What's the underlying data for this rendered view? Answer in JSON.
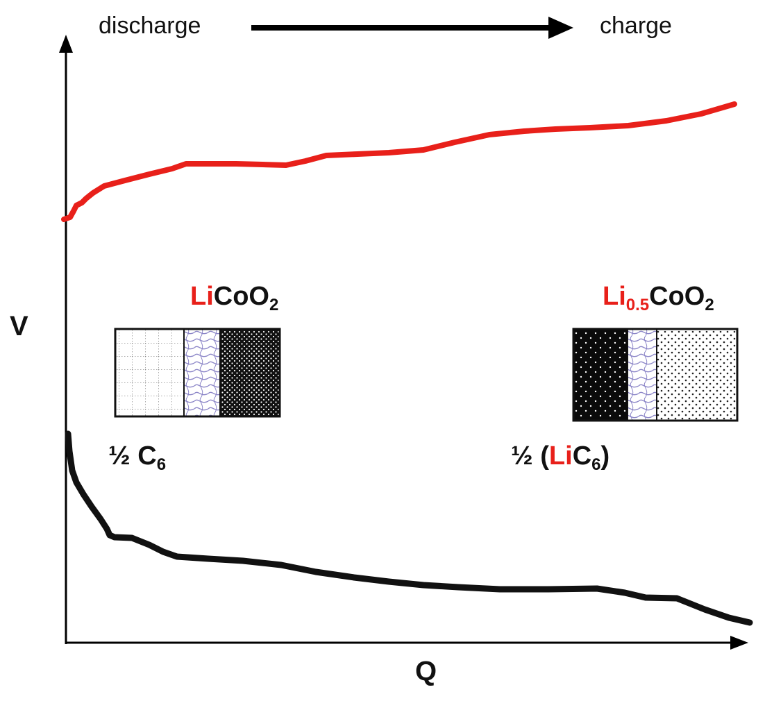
{
  "direction": {
    "left_label": "discharge",
    "right_label": "charge"
  },
  "axes": {
    "y_label": "V",
    "x_label": "Q"
  },
  "states": {
    "discharged": {
      "cathode_prefix": "Li",
      "cathode_rest": "CoO",
      "cathode_sub": "2",
      "anode_fraction": "½",
      "anode_main": "C",
      "anode_sub": "6"
    },
    "charged": {
      "cathode_prefix": "Li",
      "cathode_prefix_sub": "0.5",
      "cathode_rest": "CoO",
      "cathode_sub": "2",
      "anode_fraction": "½",
      "anode_open": "(",
      "anode_li": "Li",
      "anode_main": "C",
      "anode_sub": "6",
      "anode_close": ")"
    }
  },
  "colors": {
    "cathode_curve": "#e8201a",
    "anode_curve": "#111111",
    "lithium_highlight": "#e8201a"
  }
}
